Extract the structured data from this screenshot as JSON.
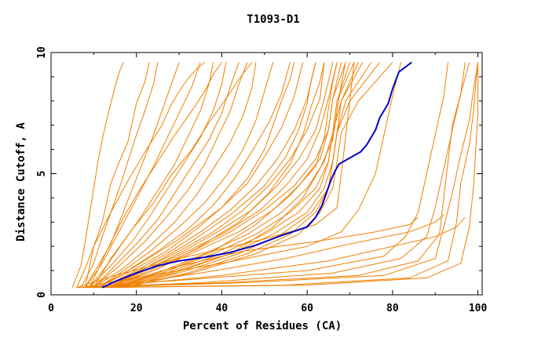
{
  "chart_data": {
    "type": "line",
    "title": "T1093-D1",
    "xlabel": "Percent of Residues (CA)",
    "ylabel": "Distance Cutoff, A",
    "xlim": [
      0,
      101
    ],
    "ylim": [
      0,
      10
    ],
    "x_ticks": [
      0,
      20,
      40,
      60,
      80,
      100
    ],
    "x_tick_labels": [
      "0",
      "20",
      "40",
      "60",
      "80",
      "100"
    ],
    "y_ticks": [
      0,
      5,
      10
    ],
    "y_tick_labels": [
      "0",
      "5",
      "10"
    ],
    "grid": false,
    "legend": "none",
    "colors": {
      "highlight": "#0000cc",
      "others": "#f08000",
      "axis": "#000000"
    },
    "series": [
      {
        "highlight": true,
        "x": [
          12,
          15,
          20,
          25,
          30,
          36,
          42,
          48,
          54,
          60,
          62,
          63.5,
          64.5,
          65.5,
          66.5,
          67.5,
          72.5,
          74,
          76,
          77,
          79,
          80,
          81.5,
          84.5
        ],
        "y": [
          0.3,
          0.55,
          0.9,
          1.2,
          1.4,
          1.55,
          1.75,
          2.05,
          2.45,
          2.8,
          3.2,
          3.7,
          4.2,
          4.7,
          5.1,
          5.4,
          5.9,
          6.2,
          6.8,
          7.3,
          7.9,
          8.5,
          9.2,
          9.6
        ]
      },
      {
        "highlight": false,
        "x": [
          5,
          7,
          8,
          9,
          10,
          11,
          12,
          13,
          14,
          15,
          16,
          17
        ],
        "y": [
          0.3,
          1.2,
          2.2,
          3.3,
          4.4,
          5.5,
          6.4,
          7.2,
          7.9,
          8.6,
          9.2,
          9.6
        ]
      },
      {
        "highlight": false,
        "x": [
          6,
          8,
          10,
          12,
          13,
          14,
          16,
          18,
          19,
          20,
          22,
          23
        ],
        "y": [
          0.3,
          1.1,
          2.0,
          3.0,
          3.8,
          4.6,
          5.5,
          6.3,
          7.1,
          7.9,
          8.8,
          9.6
        ]
      },
      {
        "highlight": false,
        "x": [
          7,
          10,
          12,
          14,
          16,
          18,
          20,
          22,
          24,
          25
        ],
        "y": [
          0.3,
          1.3,
          2.4,
          3.4,
          4.4,
          5.5,
          6.6,
          7.6,
          8.7,
          9.6
        ]
      },
      {
        "highlight": false,
        "x": [
          8,
          11,
          14,
          16,
          18,
          20,
          22,
          24,
          26,
          28,
          30
        ],
        "y": [
          0.3,
          1.2,
          2.1,
          3.0,
          3.9,
          4.8,
          5.7,
          6.6,
          7.6,
          8.6,
          9.6
        ]
      },
      {
        "highlight": false,
        "x": [
          8,
          12,
          15,
          18,
          21,
          24,
          27,
          30,
          33,
          35
        ],
        "y": [
          0.3,
          1.3,
          2.3,
          3.3,
          4.3,
          5.3,
          6.4,
          7.5,
          8.6,
          9.6
        ]
      },
      {
        "highlight": false,
        "x": [
          9,
          13,
          17,
          21,
          25,
          29,
          32,
          35,
          37,
          38
        ],
        "y": [
          0.3,
          1.2,
          2.2,
          3.2,
          4.3,
          5.4,
          6.5,
          7.6,
          8.7,
          9.6
        ]
      },
      {
        "highlight": false,
        "x": [
          9,
          14,
          19,
          23,
          27,
          31,
          35,
          38,
          40,
          41
        ],
        "y": [
          0.3,
          1.2,
          2.2,
          3.2,
          4.3,
          5.4,
          6.5,
          7.6,
          8.7,
          9.6
        ]
      },
      {
        "highlight": false,
        "x": [
          10,
          15,
          20,
          25,
          29,
          33,
          37,
          40,
          42,
          44
        ],
        "y": [
          0.3,
          1.2,
          2.1,
          3.1,
          4.2,
          5.3,
          6.4,
          7.5,
          8.6,
          9.6
        ]
      },
      {
        "highlight": false,
        "x": [
          10,
          16,
          22,
          27,
          32,
          36,
          39,
          42,
          44,
          46
        ],
        "y": [
          0.3,
          1.2,
          2.2,
          3.2,
          4.3,
          5.4,
          6.5,
          7.6,
          8.7,
          9.6
        ]
      },
      {
        "highlight": false,
        "x": [
          10,
          17,
          23,
          29,
          34,
          38,
          42,
          45,
          47,
          48
        ],
        "y": [
          0.3,
          1.1,
          2.0,
          3.0,
          4.1,
          5.2,
          6.3,
          7.4,
          8.5,
          9.6
        ]
      },
      {
        "highlight": false,
        "x": [
          11,
          17,
          24,
          30,
          36,
          41,
          45,
          48,
          50,
          52
        ],
        "y": [
          0.3,
          1.0,
          1.9,
          2.8,
          3.8,
          4.9,
          6.0,
          7.2,
          8.4,
          9.6
        ]
      },
      {
        "highlight": false,
        "x": [
          11,
          18,
          25,
          32,
          38,
          43,
          47,
          51,
          54,
          56
        ],
        "y": [
          0.3,
          1.0,
          1.8,
          2.7,
          3.7,
          4.8,
          5.9,
          7.1,
          8.3,
          9.6
        ]
      },
      {
        "highlight": false,
        "x": [
          11,
          19,
          27,
          34,
          40,
          46,
          50,
          54,
          57,
          59
        ],
        "y": [
          0.3,
          1.0,
          1.8,
          2.7,
          3.6,
          4.6,
          5.7,
          6.9,
          8.2,
          9.6
        ]
      },
      {
        "highlight": false,
        "x": [
          12,
          20,
          28,
          35,
          42,
          48,
          53,
          57,
          60,
          62
        ],
        "y": [
          0.3,
          1.0,
          1.8,
          2.6,
          3.5,
          4.5,
          5.6,
          6.8,
          8.1,
          9.6
        ]
      },
      {
        "highlight": false,
        "x": [
          12,
          21,
          30,
          38,
          45,
          51,
          56,
          60,
          63,
          64
        ],
        "y": [
          0.3,
          1.0,
          1.8,
          2.6,
          3.5,
          4.5,
          5.6,
          6.8,
          8.1,
          9.6
        ]
      },
      {
        "highlight": false,
        "x": [
          12,
          22,
          31,
          39,
          47,
          53,
          58,
          62,
          64,
          66
        ],
        "y": [
          0.3,
          1.0,
          1.8,
          2.6,
          3.5,
          4.5,
          5.6,
          6.8,
          8.1,
          9.6
        ]
      },
      {
        "highlight": false,
        "x": [
          13,
          22,
          32,
          41,
          49,
          55,
          60,
          63,
          65,
          67
        ],
        "y": [
          0.3,
          1.0,
          1.8,
          2.6,
          3.5,
          4.5,
          5.6,
          6.8,
          8.1,
          9.6
        ]
      },
      {
        "highlight": false,
        "x": [
          13,
          23,
          33,
          42,
          50,
          57,
          62,
          65,
          66,
          68
        ],
        "y": [
          0.3,
          1.0,
          1.8,
          2.6,
          3.5,
          4.5,
          5.6,
          6.8,
          8.1,
          9.6
        ]
      },
      {
        "highlight": false,
        "x": [
          14,
          24,
          34,
          44,
          52,
          58,
          63,
          65,
          66,
          69
        ],
        "y": [
          0.3,
          1.0,
          1.8,
          2.6,
          3.5,
          4.5,
          5.6,
          6.8,
          8.1,
          9.6
        ]
      },
      {
        "highlight": false,
        "x": [
          14,
          25,
          36,
          46,
          54,
          60,
          64,
          66,
          67,
          70
        ],
        "y": [
          0.3,
          0.9,
          1.7,
          2.5,
          3.4,
          4.4,
          5.5,
          6.7,
          8.0,
          9.6
        ]
      },
      {
        "highlight": false,
        "x": [
          15,
          26,
          38,
          48,
          56,
          62,
          65,
          66,
          67,
          71
        ],
        "y": [
          0.3,
          0.9,
          1.7,
          2.5,
          3.4,
          4.4,
          5.5,
          6.7,
          8.0,
          9.6
        ]
      },
      {
        "highlight": false,
        "x": [
          15,
          27,
          40,
          50,
          58,
          63,
          65,
          66,
          68,
          72
        ],
        "y": [
          0.3,
          0.9,
          1.7,
          2.5,
          3.4,
          4.4,
          5.5,
          6.7,
          8.0,
          9.6
        ]
      },
      {
        "highlight": false,
        "x": [
          16,
          28,
          42,
          52,
          60,
          64,
          66,
          67,
          68,
          73
        ],
        "y": [
          0.3,
          0.9,
          1.7,
          2.5,
          3.4,
          4.4,
          5.5,
          6.7,
          8.0,
          9.6
        ]
      },
      {
        "highlight": false,
        "x": [
          16,
          30,
          44,
          54,
          61,
          65,
          66,
          67,
          69,
          75
        ],
        "y": [
          0.3,
          0.9,
          1.7,
          2.5,
          3.4,
          4.4,
          5.5,
          6.7,
          8.0,
          9.6
        ]
      },
      {
        "highlight": false,
        "x": [
          17,
          32,
          46,
          56,
          62,
          65,
          66,
          67,
          70,
          77
        ],
        "y": [
          0.3,
          0.9,
          1.7,
          2.5,
          3.4,
          4.4,
          5.5,
          6.7,
          8.0,
          9.6
        ]
      },
      {
        "highlight": false,
        "x": [
          17,
          33,
          48,
          58,
          63,
          66,
          67,
          68,
          72,
          80
        ],
        "y": [
          0.3,
          0.9,
          1.7,
          2.5,
          3.4,
          4.4,
          5.5,
          6.7,
          8.0,
          9.6
        ]
      },
      {
        "highlight": false,
        "x": [
          8,
          10,
          14,
          18,
          22,
          26,
          28,
          30,
          32,
          34,
          36
        ],
        "y": [
          0.3,
          2.0,
          3.4,
          4.7,
          5.9,
          7.0,
          7.8,
          8.4,
          8.9,
          9.3,
          9.6
        ]
      },
      {
        "highlight": false,
        "x": [
          9,
          13,
          17,
          21,
          25,
          29,
          33,
          36,
          38,
          40
        ],
        "y": [
          0.3,
          1.8,
          3.2,
          4.4,
          5.5,
          6.6,
          7.6,
          8.4,
          9.1,
          9.6
        ]
      },
      {
        "highlight": false,
        "x": [
          10,
          14,
          19,
          24,
          28,
          33,
          37,
          41,
          44,
          47
        ],
        "y": [
          0.3,
          1.5,
          2.7,
          3.8,
          4.9,
          6.0,
          7.1,
          8.1,
          8.9,
          9.6
        ]
      },
      {
        "highlight": false,
        "x": [
          11,
          20,
          30,
          40,
          46,
          50,
          52,
          54,
          56,
          57
        ],
        "y": [
          0.3,
          1.2,
          2.3,
          3.6,
          4.8,
          6.0,
          7.0,
          8.0,
          8.9,
          9.6
        ]
      },
      {
        "highlight": false,
        "x": [
          12,
          22,
          32,
          42,
          50,
          55,
          58,
          60,
          61,
          62
        ],
        "y": [
          0.3,
          1.1,
          2.1,
          3.3,
          4.5,
          5.7,
          6.8,
          7.9,
          8.9,
          9.6
        ]
      },
      {
        "highlight": false,
        "x": [
          13,
          24,
          34,
          44,
          51,
          56,
          59,
          61,
          63,
          64
        ],
        "y": [
          0.3,
          1.0,
          1.9,
          3.0,
          4.2,
          5.4,
          6.6,
          7.8,
          8.8,
          9.6
        ]
      },
      {
        "highlight": false,
        "x": [
          14,
          26,
          38,
          48,
          56,
          62,
          64,
          65,
          66,
          67
        ],
        "y": [
          0.3,
          0.9,
          1.8,
          2.9,
          4.1,
          5.3,
          6.5,
          7.7,
          8.8,
          9.6
        ]
      },
      {
        "highlight": false,
        "x": [
          15,
          29,
          42,
          52,
          59,
          63,
          66,
          67,
          68,
          69
        ],
        "y": [
          0.3,
          0.9,
          1.7,
          2.8,
          4.0,
          5.2,
          6.4,
          7.6,
          8.7,
          9.6
        ]
      },
      {
        "highlight": false,
        "x": [
          6,
          15,
          30,
          50,
          62,
          67,
          68,
          69,
          70,
          71
        ],
        "y": [
          0.3,
          0.8,
          1.5,
          2.3,
          2.9,
          3.6,
          5.0,
          6.5,
          8.0,
          9.6
        ]
      },
      {
        "highlight": false,
        "x": [
          7,
          20,
          40,
          60,
          68,
          72,
          76,
          78,
          80,
          82
        ],
        "y": [
          0.3,
          0.7,
          1.3,
          2.0,
          2.6,
          3.5,
          5.0,
          6.6,
          8.2,
          9.6
        ]
      },
      {
        "highlight": false,
        "x": [
          6,
          30,
          60,
          78,
          83,
          86,
          88,
          90,
          92,
          93
        ],
        "y": [
          0.3,
          0.6,
          1.0,
          1.6,
          2.4,
          3.4,
          5.0,
          6.6,
          8.2,
          9.6
        ]
      },
      {
        "highlight": false,
        "x": [
          7,
          35,
          66,
          82,
          88,
          90,
          92,
          94,
          96,
          97
        ],
        "y": [
          0.3,
          0.5,
          0.9,
          1.5,
          2.4,
          3.6,
          5.2,
          6.8,
          8.3,
          9.6
        ]
      },
      {
        "highlight": false,
        "x": [
          8,
          40,
          72,
          86,
          91,
          92,
          93,
          94,
          96,
          98
        ],
        "y": [
          0.3,
          0.5,
          0.8,
          1.4,
          2.5,
          4.0,
          5.5,
          7.0,
          8.3,
          9.6
        ]
      },
      {
        "highlight": false,
        "x": [
          9,
          45,
          78,
          90,
          92,
          94,
          96,
          98,
          99,
          100
        ],
        "y": [
          0.3,
          0.5,
          0.8,
          1.5,
          2.8,
          4.2,
          5.8,
          7.2,
          8.5,
          9.6
        ]
      },
      {
        "highlight": false,
        "x": [
          10,
          55,
          84,
          93,
          95,
          96,
          98,
          99,
          99.5,
          100
        ],
        "y": [
          0.3,
          0.4,
          0.7,
          1.4,
          3.0,
          4.6,
          6.2,
          7.6,
          8.7,
          9.6
        ]
      },
      {
        "highlight": false,
        "x": [
          12,
          60,
          88,
          96,
          98,
          99,
          99.5,
          100,
          100,
          100
        ],
        "y": [
          0.3,
          0.4,
          0.7,
          1.3,
          2.8,
          4.5,
          6.0,
          7.5,
          8.6,
          9.6
        ]
      },
      {
        "highlight": false,
        "x": [
          11,
          40,
          65,
          80,
          90,
          95,
          97
        ],
        "y": [
          0.3,
          0.8,
          1.4,
          2.0,
          2.4,
          2.8,
          3.2
        ]
      },
      {
        "highlight": false,
        "x": [
          12,
          35,
          55,
          70,
          84,
          90,
          92
        ],
        "y": [
          0.3,
          0.9,
          1.5,
          2.1,
          2.6,
          3.0,
          3.3
        ]
      },
      {
        "highlight": false,
        "x": [
          13,
          28,
          45,
          62,
          76,
          84,
          86
        ],
        "y": [
          0.3,
          1.1,
          1.8,
          2.2,
          2.6,
          2.9,
          3.2
        ]
      }
    ]
  }
}
